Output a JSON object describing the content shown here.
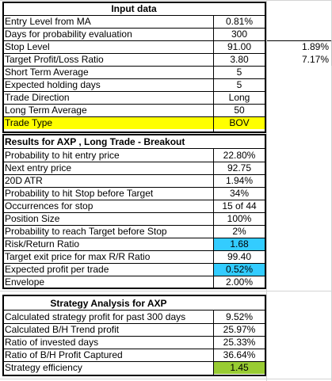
{
  "colors": {
    "highlight_yellow": "#ffff00",
    "highlight_blue": "#33ccff",
    "highlight_green": "#99cc33",
    "border": "#000000",
    "gridline": "#d4d4d4"
  },
  "input_section": {
    "title": "Input data",
    "rows": [
      {
        "label": "Entry Level from MA",
        "value": "0.81%",
        "extra": ""
      },
      {
        "label": "Days for probability evaluation",
        "value": "300",
        "extra": ""
      },
      {
        "label": "Stop Level",
        "value": "91.00",
        "extra": "1.89%"
      },
      {
        "label": "Target Profit/Loss Ratio",
        "value": "3.80",
        "extra": "7.17%"
      },
      {
        "label": "Short Term Average",
        "value": "5",
        "extra": ""
      },
      {
        "label": "Expected holding days",
        "value": "5",
        "extra": ""
      },
      {
        "label": "Trade Direction",
        "value": "Long",
        "extra": ""
      },
      {
        "label": "Long Term Average",
        "value": "50",
        "extra": ""
      },
      {
        "label": "Trade Type",
        "value": "BOV",
        "extra": "",
        "highlight": "yellow_row"
      }
    ]
  },
  "results_section": {
    "title": "Results for AXP , Long Trade - Breakout",
    "rows": [
      {
        "label": "Probability to hit entry price",
        "value": "22.80%"
      },
      {
        "label": "Next entry price",
        "value": "92.75"
      },
      {
        "label": "20D ATR",
        "value": "1.94%"
      },
      {
        "label": "Probability to hit Stop before Target",
        "value": "34%"
      },
      {
        "label": "Occurrences for stop",
        "value": "15 of 44"
      },
      {
        "label": "Position Size",
        "value": "100%"
      },
      {
        "label": "Probability to reach Target before Stop",
        "value": "2%"
      },
      {
        "label": "Risk/Return Ratio",
        "value": "1.68",
        "highlight": "blue"
      },
      {
        "label": "Target exit price for max R/R Ratio",
        "value": "99.40"
      },
      {
        "label": "Expected profit per trade",
        "value": "0.52%",
        "highlight": "blue"
      },
      {
        "label": "Envelope",
        "value": "2.00%"
      }
    ]
  },
  "strategy_section": {
    "title": "Strategy Analysis for AXP",
    "rows": [
      {
        "label": "Calculated strategy profit for past 300 days",
        "value": "9.52%"
      },
      {
        "label": "Calculated B/H Trend profit",
        "value": "25.97%"
      },
      {
        "label": "Ratio of invested days",
        "value": "25.33%"
      },
      {
        "label": "Ratio of B/H Profit Captured",
        "value": "36.64%"
      },
      {
        "label": "Strategy efficiency",
        "value": "1.45",
        "highlight": "green"
      }
    ]
  }
}
